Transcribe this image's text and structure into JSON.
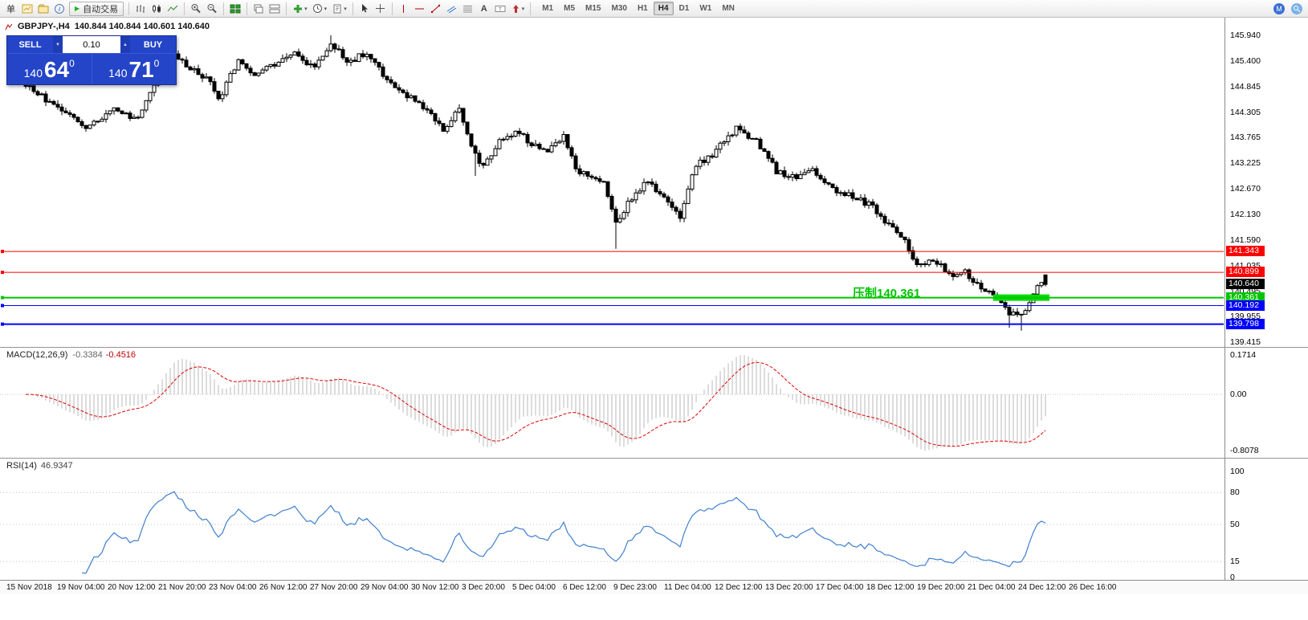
{
  "toolbar": {
    "new_order_label": "单",
    "autotrade_label": "自动交易",
    "timeframes": [
      "M1",
      "M5",
      "M15",
      "M30",
      "H1",
      "H4",
      "D1",
      "W1",
      "MN"
    ],
    "active_timeframe": "H4"
  },
  "chart": {
    "symbol_title": "GBPJPY-,H4",
    "quote_line": "140.844 140.844 140.601 140.640",
    "trade_panel": {
      "sell_label": "SELL",
      "buy_label": "BUY",
      "volume": "0.10",
      "sell_price_big": "140",
      "sell_price_main": "64",
      "sell_price_sup": "0",
      "buy_price_big": "140",
      "buy_price_main": "71",
      "buy_price_sup": "0"
    },
    "annotation": {
      "text": "压制140.361",
      "color": "#00c400"
    },
    "axis_ticks": [
      "145.940",
      "145.400",
      "144.845",
      "144.305",
      "143.765",
      "143.225",
      "142.670",
      "142.130",
      "141.590",
      "141.035",
      "140.495",
      "139.955",
      "139.415"
    ],
    "levels": [
      {
        "price": 141.343,
        "label": "141.343",
        "color": "#ff0000",
        "line_width": 1
      },
      {
        "price": 140.899,
        "label": "140.899",
        "color": "#ff0000",
        "line_width": 1
      },
      {
        "price": 140.64,
        "label": "140.640",
        "color": "#000000",
        "line_width": 0
      },
      {
        "price": 140.361,
        "label": "140.361",
        "color": "#00c400",
        "line_width": 2
      },
      {
        "price": 140.192,
        "label": "140.192",
        "color": "#0000ff",
        "line_width": 1
      },
      {
        "price": 139.798,
        "label": "139.798",
        "color": "#0000ff",
        "line_width": 2
      }
    ],
    "green_zone": {
      "price": 140.361,
      "from_index": 241,
      "to_index": 255,
      "color": "#00dd00",
      "height": 8
    }
  },
  "macd": {
    "label": "MACD(12,26,9)",
    "value_main": "-0.3384",
    "value_signal": "-0.4516",
    "axis": [
      "0.1714",
      "0.00",
      "-0.8078"
    ]
  },
  "rsi": {
    "label": "RSI(14)",
    "value": "46.9347",
    "axis": [
      "100",
      "80",
      "50",
      "15",
      "0"
    ],
    "levels": [
      80,
      50,
      15
    ]
  },
  "time_axis": [
    "15 Nov 2018",
    "19 Nov 04:00",
    "20 Nov 12:00",
    "21 Nov 20:00",
    "23 Nov 04:00",
    "26 Nov 12:00",
    "27 Nov 20:00",
    "29 Nov 04:00",
    "30 Nov 12:00",
    "3 Dec 20:00",
    "5 Dec 04:00",
    "6 Dec 12:00",
    "9 Dec 23:00",
    "11 Dec 04:00",
    "12 Dec 12:00",
    "13 Dec 20:00",
    "17 Dec 04:00",
    "18 Dec 12:00",
    "19 Dec 20:00",
    "21 Dec 04:00",
    "24 Dec 12:00",
    "26 Dec 16:00"
  ],
  "chart_data": {
    "type": "candlestick",
    "symbol": "GBPJPY-",
    "timeframe": "H4",
    "price_range": [
      139.415,
      145.94
    ],
    "count": 255,
    "last_candle": {
      "open": 140.844,
      "high": 140.844,
      "low": 140.601,
      "close": 140.64
    },
    "anchors": [
      [
        0,
        144.9
      ],
      [
        6,
        144.5
      ],
      [
        12,
        144.15
      ],
      [
        16,
        143.98
      ],
      [
        22,
        144.4
      ],
      [
        28,
        144.15
      ],
      [
        32,
        144.85
      ],
      [
        37,
        145.55
      ],
      [
        41,
        145.25
      ],
      [
        46,
        144.95
      ],
      [
        48,
        144.55
      ],
      [
        53,
        145.45
      ],
      [
        57,
        145.05
      ],
      [
        62,
        145.35
      ],
      [
        67,
        145.55
      ],
      [
        72,
        145.25
      ],
      [
        76,
        145.8
      ],
      [
        80,
        145.35
      ],
      [
        85,
        145.6
      ],
      [
        90,
        145.0
      ],
      [
        96,
        144.6
      ],
      [
        100,
        144.3
      ],
      [
        104,
        143.95
      ],
      [
        108,
        144.35
      ],
      [
        112,
        143.4
      ],
      [
        114,
        143.15
      ],
      [
        118,
        143.7
      ],
      [
        122,
        143.9
      ],
      [
        126,
        143.65
      ],
      [
        130,
        143.45
      ],
      [
        134,
        143.8
      ],
      [
        137,
        143.1
      ],
      [
        141,
        142.9
      ],
      [
        144,
        142.85
      ],
      [
        147,
        141.95
      ],
      [
        150,
        142.35
      ],
      [
        155,
        142.85
      ],
      [
        159,
        142.5
      ],
      [
        163,
        142.1
      ],
      [
        167,
        143.2
      ],
      [
        171,
        143.4
      ],
      [
        177,
        143.95
      ],
      [
        182,
        143.7
      ],
      [
        187,
        143.05
      ],
      [
        192,
        142.9
      ],
      [
        196,
        143.1
      ],
      [
        201,
        142.65
      ],
      [
        206,
        142.5
      ],
      [
        211,
        142.3
      ],
      [
        215,
        141.9
      ],
      [
        219,
        141.55
      ],
      [
        222,
        141.0
      ],
      [
        226,
        141.2
      ],
      [
        230,
        140.85
      ],
      [
        234,
        140.9
      ],
      [
        238,
        140.55
      ],
      [
        242,
        140.35
      ],
      [
        245,
        140.05
      ],
      [
        248,
        140.0
      ],
      [
        250,
        140.2
      ],
      [
        252,
        140.6
      ],
      [
        254,
        140.84
      ]
    ],
    "wick_overrides": [
      [
        76,
        "high",
        145.94
      ],
      [
        112,
        "low",
        142.95
      ],
      [
        147,
        "low",
        141.4
      ],
      [
        245,
        "low",
        139.72
      ],
      [
        248,
        "low",
        139.66
      ]
    ],
    "indicators": [
      {
        "name": "MACD",
        "params": [
          12,
          26,
          9
        ],
        "current": [
          -0.3384,
          -0.4516
        ]
      },
      {
        "name": "RSI",
        "params": [
          14
        ],
        "current": 46.9347
      }
    ]
  }
}
